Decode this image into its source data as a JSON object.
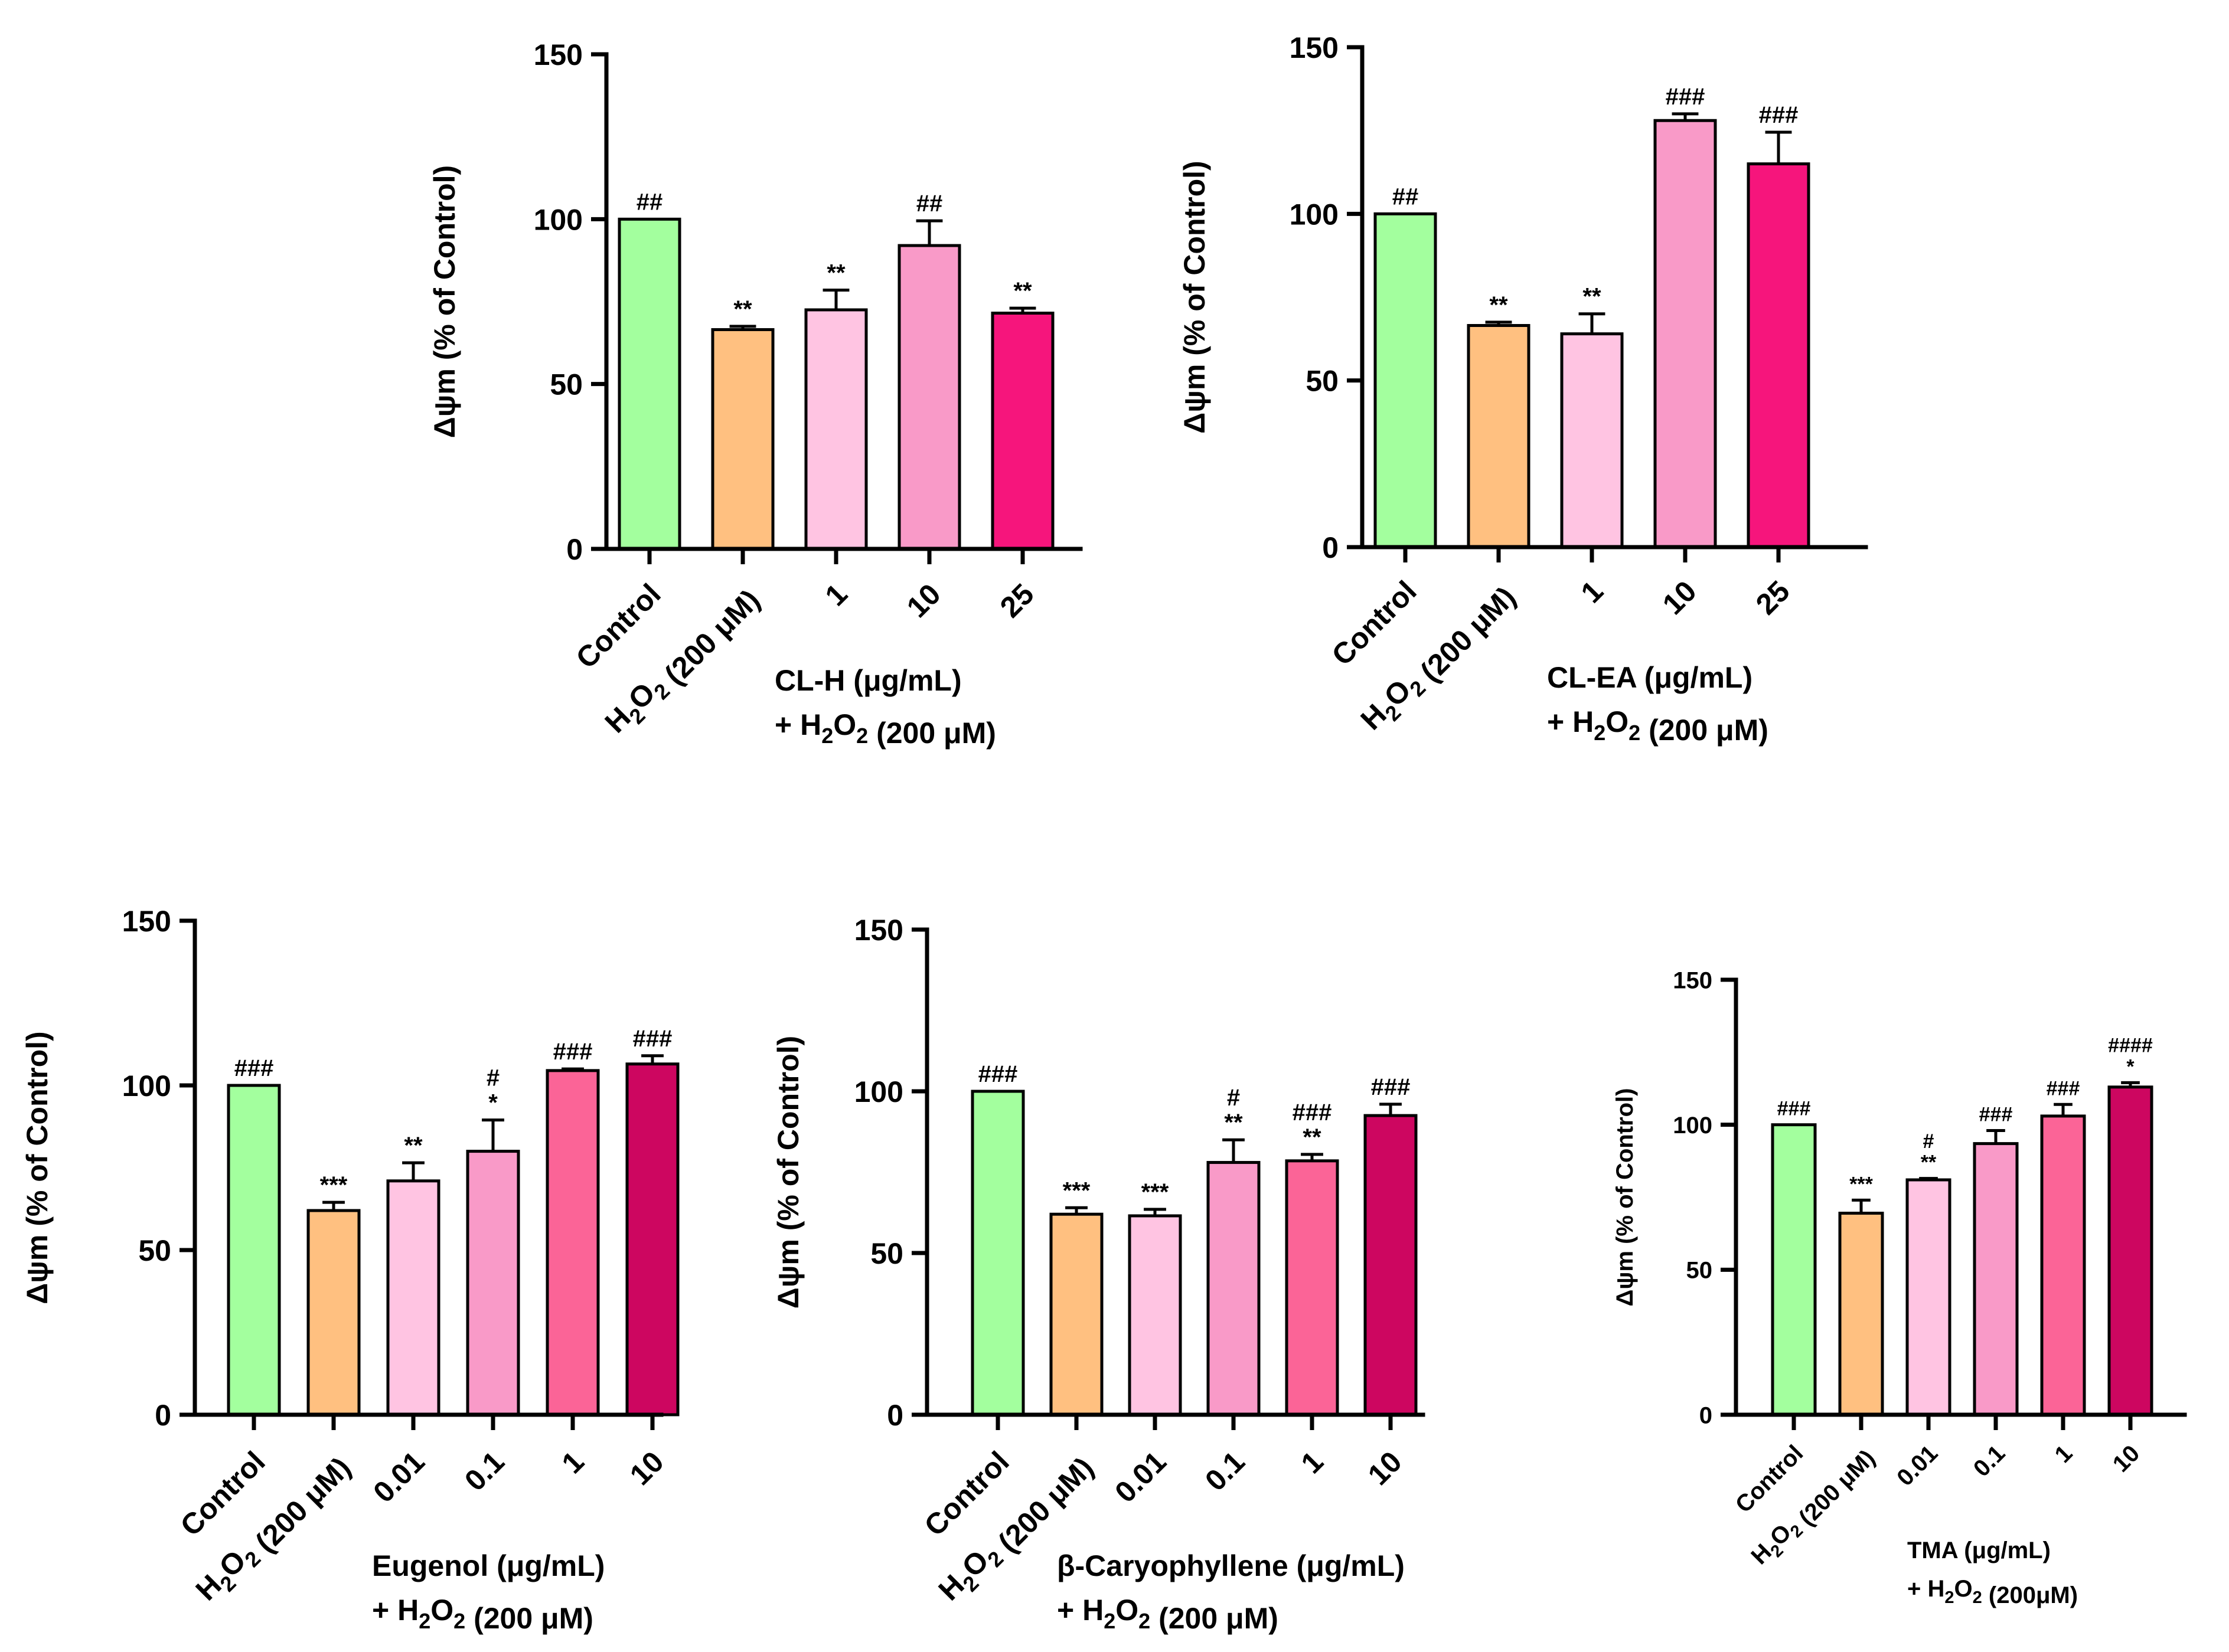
{
  "chart_data": [
    {
      "type": "bar",
      "ylabel": "Δψm (% of Control)",
      "ylim": [
        0,
        150
      ],
      "yticks": [
        0,
        50,
        100,
        150
      ],
      "categories": [
        "Control",
        "H2O2 (200 μM)",
        "1",
        "10",
        "25"
      ],
      "values": [
        100,
        66.5,
        72.5,
        92,
        71.5
      ],
      "errors": [
        0,
        1,
        6,
        7.5,
        1.5
      ],
      "colors": [
        "#a3ff9e",
        "#ffc080",
        "#ffc4e2",
        "#f99ac8",
        "#f6157c"
      ],
      "annotations": [
        [
          "##"
        ],
        [
          "**"
        ],
        [
          "**"
        ],
        [
          "##"
        ],
        [
          "**"
        ]
      ],
      "group_label": [
        "CL-H (μg/mL)",
        "+ H2O2 (200 μM)"
      ]
    },
    {
      "type": "bar",
      "ylabel": "Δψm (% of Control)",
      "ylim": [
        0,
        150
      ],
      "yticks": [
        0,
        50,
        100,
        150
      ],
      "categories": [
        "Control",
        "H2O2 (200 μM)",
        "1",
        "10",
        "25"
      ],
      "values": [
        100,
        66.5,
        64,
        128,
        115
      ],
      "errors": [
        0,
        1,
        6,
        2,
        9.5
      ],
      "colors": [
        "#a3ff9e",
        "#ffc080",
        "#ffc4e2",
        "#f99ac8",
        "#f6157c"
      ],
      "annotations": [
        [
          "##"
        ],
        [
          "**"
        ],
        [
          "**"
        ],
        [
          "###"
        ],
        [
          "###"
        ]
      ],
      "group_label": [
        "CL-EA (μg/mL)",
        "+ H2O2 (200 μM)"
      ]
    },
    {
      "type": "bar",
      "ylabel": "Δψm (% of Control)",
      "ylim": [
        0,
        150
      ],
      "yticks": [
        0,
        50,
        100,
        150
      ],
      "categories": [
        "Control",
        "H2O2 (200 μM)",
        "0.01",
        "0.1",
        "1",
        "10"
      ],
      "values": [
        100,
        62,
        71,
        80,
        104.5,
        106.5
      ],
      "errors": [
        0,
        2.5,
        5.5,
        9.5,
        0.5,
        2.5
      ],
      "colors": [
        "#a3ff9e",
        "#ffc080",
        "#ffc4e2",
        "#f99ac8",
        "#fb6497",
        "#cd0660"
      ],
      "annotations": [
        [
          "###"
        ],
        [
          "***"
        ],
        [
          "**"
        ],
        [
          "#",
          "*"
        ],
        [
          "###"
        ],
        [
          "###"
        ]
      ],
      "group_label": [
        "Eugenol (μg/mL)",
        "+ H2O2 (200 μM)"
      ]
    },
    {
      "type": "bar",
      "ylabel": "Δψm (% of Control)",
      "ylim": [
        0,
        150
      ],
      "yticks": [
        0,
        50,
        100,
        150
      ],
      "categories": [
        "Control",
        "H2O2 (200 μM)",
        "0.01",
        "0.1",
        "1",
        "10"
      ],
      "values": [
        100,
        62,
        61.5,
        78,
        78.5,
        92.5
      ],
      "errors": [
        0,
        2,
        2,
        7,
        2,
        3.5
      ],
      "colors": [
        "#a3ff9e",
        "#ffc080",
        "#ffc4e2",
        "#f99ac8",
        "#fb6497",
        "#cd0660"
      ],
      "annotations": [
        [
          "###"
        ],
        [
          "***"
        ],
        [
          "***"
        ],
        [
          "#",
          "**"
        ],
        [
          "###",
          "**"
        ],
        [
          "###"
        ]
      ],
      "group_label": [
        "β-Caryophyllene (μg/mL)",
        "+ H2O2 (200 μM)"
      ]
    },
    {
      "type": "bar",
      "ylabel": "Δψm (% of Control)",
      "ylim": [
        0,
        150
      ],
      "yticks": [
        0,
        50,
        100,
        150
      ],
      "categories": [
        "Control",
        "H2O2 (200 μM)",
        "0.01",
        "0.1",
        "1",
        "10"
      ],
      "values": [
        100,
        69.5,
        81,
        93.5,
        103,
        113
      ],
      "errors": [
        0,
        4.5,
        0.5,
        4.5,
        4,
        1.5
      ],
      "colors": [
        "#a3ff9e",
        "#ffc080",
        "#ffc4e2",
        "#f99ac8",
        "#fb6497",
        "#cd0660"
      ],
      "annotations": [
        [
          "###"
        ],
        [
          "***"
        ],
        [
          "#",
          "**"
        ],
        [
          "###"
        ],
        [
          "###"
        ],
        [
          "####",
          "*"
        ]
      ],
      "group_label": [
        "TMA (μg/mL)",
        "+ H2O2 (200μM)"
      ]
    }
  ]
}
